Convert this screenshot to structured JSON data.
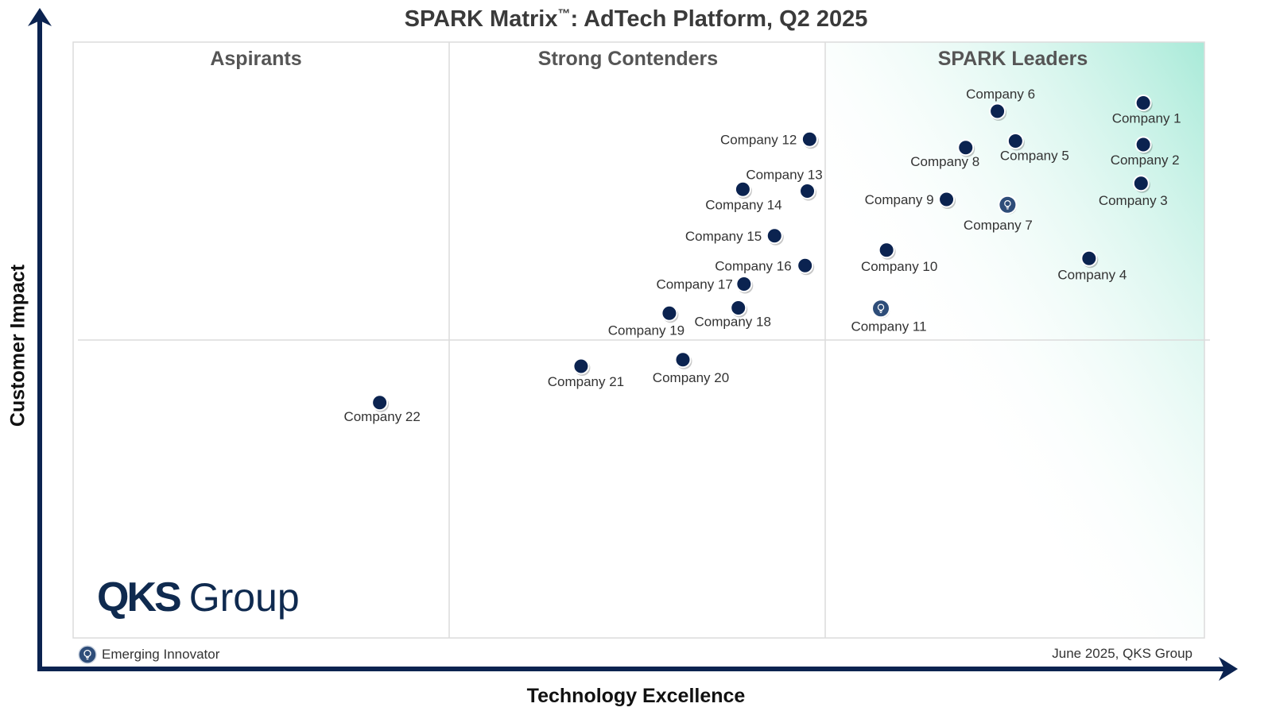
{
  "chart_data": {
    "type": "scatter",
    "title": "SPARK Matrix",
    "title_mark": "™",
    "title_rest": ": AdTech Platform, Q2 2025",
    "xlabel": "Technology Excellence",
    "ylabel": "Customer Impact",
    "xlim": [
      0,
      1
    ],
    "ylim": [
      0,
      1
    ],
    "grid": true,
    "quadrants": [
      "Aspirants",
      "Strong Contenders",
      "SPARK Leaders"
    ],
    "legend": {
      "label": "Emerging Innovator",
      "placement": "bottom-left"
    },
    "source_note": "June 2025, QKS Group",
    "colors": {
      "point": "#0b2350",
      "innovator": "#2e4d79",
      "leaders_gradient": "#a8ead8",
      "axis": "#0b2350",
      "grid": "#dcdcdc"
    },
    "points": [
      {
        "label": "Company 1",
        "x": 0.946,
        "y": 0.898,
        "emerging": false
      },
      {
        "label": "Company 2",
        "x": 0.946,
        "y": 0.828,
        "emerging": false
      },
      {
        "label": "Company 3",
        "x": 0.944,
        "y": 0.763,
        "emerging": false
      },
      {
        "label": "Company 4",
        "x": 0.898,
        "y": 0.637,
        "emerging": false
      },
      {
        "label": "Company 5",
        "x": 0.833,
        "y": 0.834,
        "emerging": false
      },
      {
        "label": "Company 6",
        "x": 0.817,
        "y": 0.884,
        "emerging": false
      },
      {
        "label": "Company 7",
        "x": 0.826,
        "y": 0.727,
        "emerging": true
      },
      {
        "label": "Company 8",
        "x": 0.789,
        "y": 0.823,
        "emerging": false
      },
      {
        "label": "Company 9",
        "x": 0.772,
        "y": 0.736,
        "emerging": false
      },
      {
        "label": "Company 10",
        "x": 0.719,
        "y": 0.651,
        "emerging": false
      },
      {
        "label": "Company 11",
        "x": 0.714,
        "y": 0.553,
        "emerging": true
      },
      {
        "label": "Company 12",
        "x": 0.651,
        "y": 0.837,
        "emerging": false
      },
      {
        "label": "Company 13",
        "x": 0.649,
        "y": 0.75,
        "emerging": false
      },
      {
        "label": "Company 14",
        "x": 0.592,
        "y": 0.753,
        "emerging": false
      },
      {
        "label": "Company 15",
        "x": 0.62,
        "y": 0.675,
        "emerging": false
      },
      {
        "label": "Company 16",
        "x": 0.647,
        "y": 0.625,
        "emerging": false
      },
      {
        "label": "Company 17",
        "x": 0.593,
        "y": 0.594,
        "emerging": false
      },
      {
        "label": "Company 18",
        "x": 0.588,
        "y": 0.554,
        "emerging": false
      },
      {
        "label": "Company 19",
        "x": 0.527,
        "y": 0.545,
        "emerging": false
      },
      {
        "label": "Company 20",
        "x": 0.539,
        "y": 0.467,
        "emerging": false
      },
      {
        "label": "Company 21",
        "x": 0.449,
        "y": 0.456,
        "emerging": false
      },
      {
        "label": "Company 22",
        "x": 0.271,
        "y": 0.395,
        "emerging": false
      }
    ]
  },
  "logo": {
    "bold": "QKS",
    "rest": "Group"
  }
}
